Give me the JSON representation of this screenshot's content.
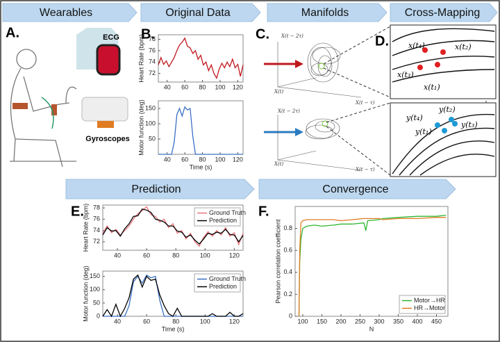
{
  "headers": [
    "Wearables",
    "Original Data",
    "Manifolds",
    "Cross-Mapping",
    "Prediction",
    "Convergence"
  ],
  "panel_labels": [
    "A.",
    "B.",
    "C.",
    "D.",
    "E.",
    "F."
  ],
  "devices": [
    "ECG",
    "Gyroscopes"
  ],
  "manifold_axes": {
    "top": [
      "X(t − 2τ)",
      "X(t)",
      "X(t − τ)"
    ],
    "bottom": [
      "X(t − 2τ)",
      "X(t)",
      "X(t − τ)"
    ]
  },
  "cross_mapping": {
    "top": [
      "x(t₄)",
      "x(t₂)",
      "x(t₃)",
      "x(t₁)"
    ],
    "bottom": [
      "y(t₄)",
      "y(t₂)",
      "y(t₃)",
      "y(t₁)"
    ]
  },
  "chart_data": [
    {
      "type": "line",
      "ylabel": "Heart Rate (bpm)",
      "xlim": [
        30,
        126
      ],
      "ylim": [
        70.5,
        78.8
      ],
      "xticks": [
        40,
        60,
        80,
        100,
        120
      ],
      "yticks": [
        72,
        74,
        76,
        78
      ],
      "x": [
        30,
        33,
        36,
        39,
        42,
        45,
        48,
        51,
        54,
        57,
        60,
        63,
        66,
        69,
        72,
        75,
        78,
        81,
        84,
        87,
        90,
        93,
        96,
        99,
        102,
        105,
        108,
        111,
        114,
        117,
        120,
        123,
        126
      ],
      "series": [
        {
          "name": "Heart Rate",
          "color": "#c0171d",
          "values": [
            73.5,
            74.8,
            73.6,
            74.2,
            73.2,
            74.0,
            74.8,
            76.0,
            77.0,
            77.5,
            78.2,
            76.8,
            76.5,
            75.5,
            76.0,
            74.5,
            75.2,
            73.5,
            74.0,
            72.5,
            73.5,
            72.0,
            71.2,
            72.8,
            73.8,
            73.0,
            74.0,
            73.2,
            74.5,
            73.0,
            73.6,
            71.5,
            73.5
          ]
        }
      ]
    },
    {
      "type": "line",
      "ylabel": "Motor function (deg)",
      "xlabel": "Time (s)",
      "xlim": [
        30,
        126
      ],
      "ylim": [
        0,
        175
      ],
      "xticks": [
        40,
        60,
        80,
        100,
        120
      ],
      "yticks": [
        50,
        100,
        150
      ],
      "x": [
        30,
        33,
        36,
        39,
        42,
        45,
        48,
        51,
        54,
        57,
        60,
        63,
        66,
        69,
        72,
        75,
        78,
        81,
        84,
        87,
        90,
        93,
        96,
        99,
        102,
        105,
        108,
        111,
        114,
        117,
        120,
        123,
        126
      ],
      "series": [
        {
          "name": "Motor function",
          "color": "#3a6fc4",
          "values": [
            0,
            0,
            0,
            0,
            0,
            0,
            40,
            130,
            150,
            125,
            155,
            145,
            150,
            60,
            0,
            0,
            0,
            0,
            0,
            0,
            0,
            0,
            0,
            0,
            0,
            0,
            0,
            0,
            0,
            0,
            0,
            0,
            0
          ]
        }
      ]
    },
    {
      "type": "line",
      "ylabel": "Heart Rate (bpm)",
      "xlim": [
        30,
        126
      ],
      "ylim": [
        70.5,
        78.5
      ],
      "xticks": [
        40,
        60,
        80,
        100,
        120
      ],
      "yticks": [
        72,
        74,
        76,
        78
      ],
      "legend": "upper right",
      "x": [
        30,
        33,
        36,
        39,
        42,
        45,
        48,
        51,
        54,
        57,
        60,
        63,
        66,
        69,
        72,
        75,
        78,
        81,
        84,
        87,
        90,
        93,
        96,
        99,
        102,
        105,
        108,
        111,
        114,
        117,
        120,
        123,
        126
      ],
      "series": [
        {
          "name": "Ground Truth",
          "color": "#e8747a",
          "values": [
            73.5,
            74.8,
            73.6,
            74.2,
            73.2,
            74.0,
            74.8,
            76.0,
            77.0,
            77.5,
            78.2,
            76.8,
            76.5,
            75.5,
            76.0,
            74.5,
            75.2,
            73.5,
            74.0,
            72.5,
            73.5,
            72.0,
            71.2,
            72.8,
            73.8,
            73.0,
            74.0,
            73.2,
            74.5,
            73.0,
            73.6,
            71.5,
            73.5
          ]
        },
        {
          "name": "Prediction",
          "color": "#000000",
          "values": [
            73.2,
            74.5,
            73.9,
            74.0,
            73.0,
            74.3,
            75.2,
            76.5,
            76.6,
            77.8,
            77.6,
            77.2,
            76.0,
            75.8,
            75.5,
            74.8,
            74.8,
            73.9,
            73.7,
            72.8,
            73.2,
            72.3,
            71.6,
            72.5,
            73.5,
            73.3,
            73.7,
            73.5,
            74.2,
            73.3,
            73.2,
            72.0,
            73.1
          ]
        }
      ]
    },
    {
      "type": "line",
      "ylabel": "Motor function (deg)",
      "xlabel": "Time (s)",
      "xlim": [
        30,
        126
      ],
      "ylim": [
        0,
        170
      ],
      "xticks": [
        40,
        60,
        80,
        100,
        120
      ],
      "yticks": [
        0,
        50,
        100,
        150
      ],
      "legend": "upper right",
      "x": [
        30,
        33,
        36,
        39,
        42,
        45,
        48,
        51,
        54,
        57,
        60,
        63,
        66,
        69,
        72,
        75,
        78,
        81,
        84,
        87,
        90,
        93,
        96,
        99,
        102,
        105,
        108,
        111,
        114,
        117,
        120,
        123,
        126
      ],
      "series": [
        {
          "name": "Ground Truth",
          "color": "#3a6fc4",
          "values": [
            0,
            0,
            0,
            0,
            0,
            0,
            40,
            130,
            150,
            125,
            155,
            145,
            150,
            60,
            0,
            0,
            0,
            0,
            0,
            0,
            0,
            0,
            0,
            0,
            0,
            0,
            0,
            0,
            0,
            0,
            0,
            0,
            0
          ]
        },
        {
          "name": "Prediction",
          "color": "#000000",
          "values": [
            0,
            25,
            0,
            45,
            0,
            30,
            70,
            140,
            155,
            110,
            150,
            135,
            140,
            80,
            40,
            10,
            0,
            30,
            0,
            0,
            0,
            0,
            0,
            0,
            0,
            10,
            0,
            0,
            0,
            15,
            0,
            0,
            10
          ]
        }
      ]
    },
    {
      "type": "line",
      "ylabel": "Pearson correlation coefficient",
      "xlabel": "N",
      "xlim": [
        80,
        480
      ],
      "ylim": [
        0,
        1
      ],
      "xticks": [
        100,
        150,
        200,
        250,
        300,
        350,
        400,
        450
      ],
      "yticks": [
        0,
        0.2,
        0.4,
        0.6,
        0.8
      ],
      "legend": "lower right",
      "x": [
        90,
        92,
        95,
        100,
        110,
        130,
        150,
        180,
        200,
        230,
        260,
        265,
        270,
        300,
        310,
        350,
        400,
        450,
        475
      ],
      "series": [
        {
          "name": "Motor→HR",
          "color": "#2fb52f",
          "values": [
            0,
            0.5,
            0.7,
            0.8,
            0.82,
            0.83,
            0.82,
            0.83,
            0.84,
            0.84,
            0.85,
            0.78,
            0.87,
            0.88,
            0.89,
            0.9,
            0.91,
            0.91,
            0.92
          ]
        },
        {
          "name": "HR→Motor",
          "color": "#e07b22",
          "values": [
            0,
            0.6,
            0.85,
            0.87,
            0.88,
            0.88,
            0.88,
            0.88,
            0.87,
            0.88,
            0.89,
            0.89,
            0.89,
            0.89,
            0.88,
            0.89,
            0.89,
            0.9,
            0.9
          ]
        }
      ]
    }
  ]
}
